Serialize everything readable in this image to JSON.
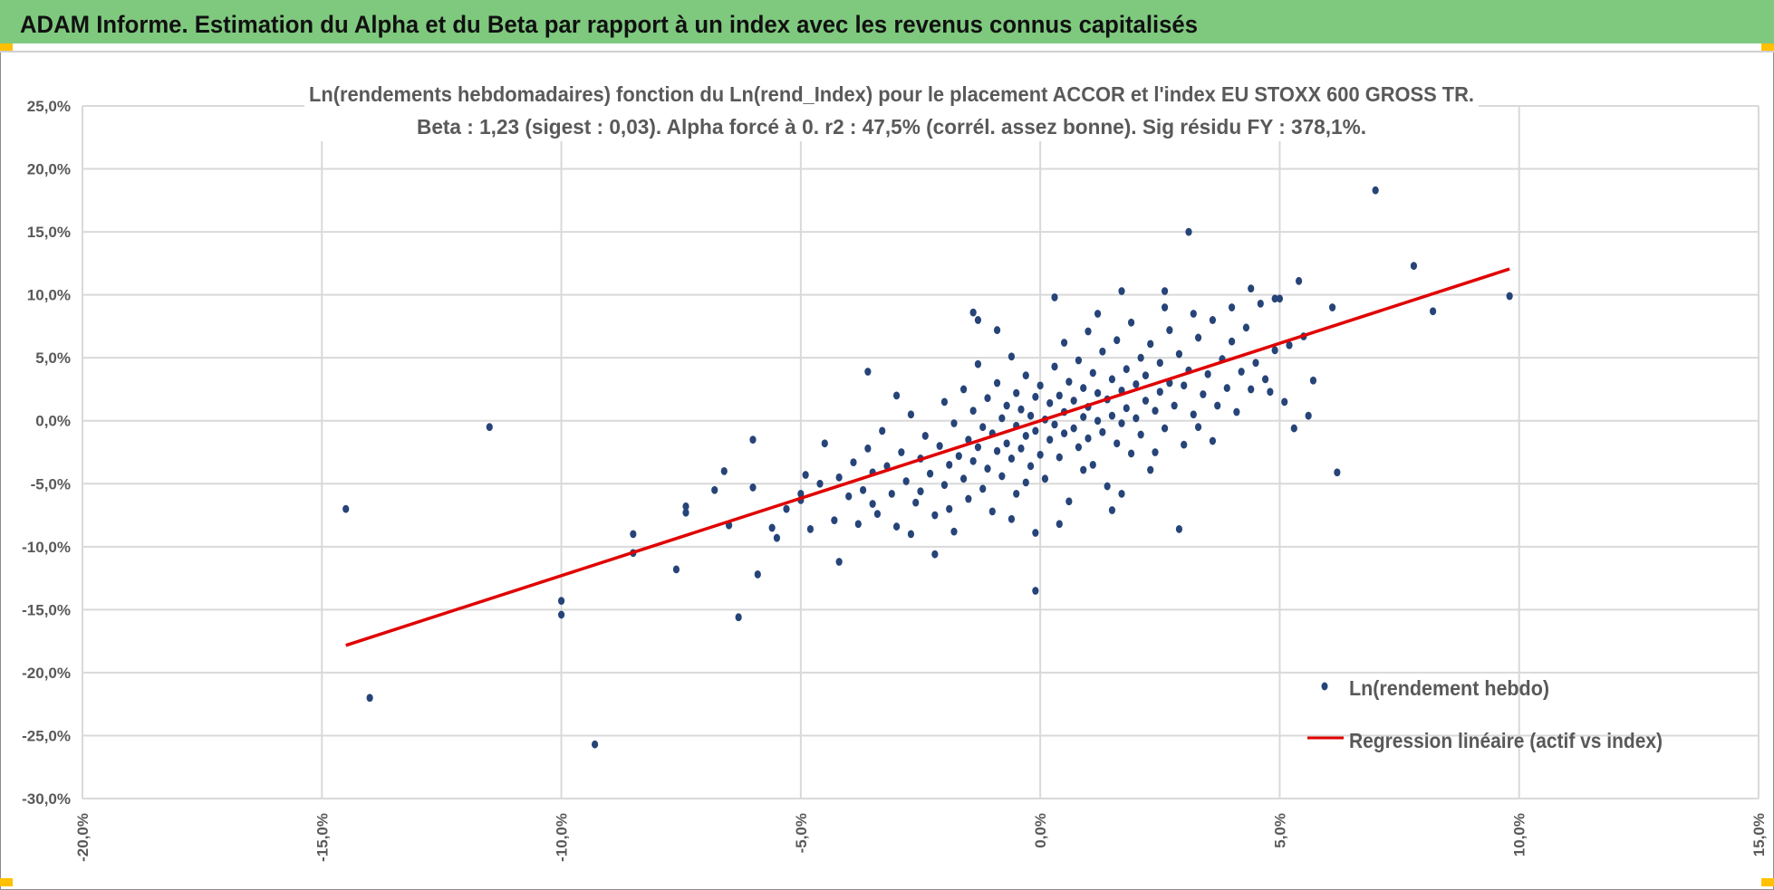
{
  "header": {
    "title": "ADAM Informe. Estimation du Alpha et du Beta par rapport à un index avec les revenus connus capitalisés"
  },
  "colors": {
    "header_bg": "#7fc97f",
    "accent": "#ffc000",
    "points": "#264478",
    "regression": "#e00000",
    "grid": "#d9d9d9",
    "text": "#595959"
  },
  "chart_data": {
    "type": "scatter",
    "title": "Ln(rendements hebdomadaires) fonction du Ln(rend_Index) pour le placement ACCOR et l'index EU STOXX 600 GROSS TR.",
    "subtitle": "Beta : 1,23 (sigest : 0,03). Alpha forcé à 0. r2 : 47,5% (corrél. assez bonne). Sig résidu FY : 378,1%.",
    "xlabel": "",
    "ylabel": "",
    "xlim": [
      -20,
      15
    ],
    "ylim": [
      -30,
      25
    ],
    "grid": true,
    "legend_position": "bottom-right",
    "x_ticks": [
      "-20,0%",
      "-15,0%",
      "-10,0%",
      "-5,0%",
      "0,0%",
      "5,0%",
      "10,0%",
      "15,0%"
    ],
    "y_ticks": [
      "25,0%",
      "20,0%",
      "15,0%",
      "10,0%",
      "5,0%",
      "0,0%",
      "-5,0%",
      "-10,0%",
      "-15,0%",
      "-20,0%",
      "-25,0%",
      "-30,0%"
    ],
    "series": [
      {
        "name": "Ln(rendement hebdo)",
        "type": "scatter",
        "points": [
          [
            -14.5,
            -7.0
          ],
          [
            -14.0,
            -22.0
          ],
          [
            -11.5,
            -0.5
          ],
          [
            -10.0,
            -14.3
          ],
          [
            -10.0,
            -15.4
          ],
          [
            -9.3,
            -25.7
          ],
          [
            -8.5,
            -9.0
          ],
          [
            -8.5,
            -10.5
          ],
          [
            -7.6,
            -11.8
          ],
          [
            -7.4,
            -6.8
          ],
          [
            -7.4,
            -7.3
          ],
          [
            -6.8,
            -5.5
          ],
          [
            -6.6,
            -4.0
          ],
          [
            -6.5,
            -8.3
          ],
          [
            -6.3,
            -15.6
          ],
          [
            -6.0,
            -1.5
          ],
          [
            -5.9,
            -12.2
          ],
          [
            -6.0,
            -5.3
          ],
          [
            -5.5,
            -9.3
          ],
          [
            -5.0,
            -5.8
          ],
          [
            -4.2,
            -11.2
          ],
          [
            -3.6,
            3.9
          ],
          [
            -3.0,
            2.0
          ],
          [
            -2.2,
            -10.6
          ],
          [
            -1.4,
            8.6
          ],
          [
            -1.3,
            8.0
          ],
          [
            -0.9,
            7.2
          ],
          [
            -0.1,
            -13.5
          ],
          [
            -0.1,
            -8.9
          ],
          [
            0.3,
            9.8
          ],
          [
            1.2,
            8.5
          ],
          [
            1.7,
            10.3
          ],
          [
            2.6,
            10.3
          ],
          [
            2.6,
            9.0
          ],
          [
            2.9,
            -8.6
          ],
          [
            3.1,
            15.0
          ],
          [
            3.2,
            8.5
          ],
          [
            4.0,
            9.0
          ],
          [
            4.4,
            10.5
          ],
          [
            4.6,
            9.3
          ],
          [
            4.9,
            9.7
          ],
          [
            5.0,
            9.7
          ],
          [
            5.4,
            11.1
          ],
          [
            5.3,
            -0.6
          ],
          [
            5.6,
            0.4
          ],
          [
            5.7,
            3.2
          ],
          [
            6.1,
            9.0
          ],
          [
            6.2,
            -4.1
          ],
          [
            7.0,
            18.3
          ],
          [
            7.8,
            12.3
          ],
          [
            8.2,
            8.7
          ],
          [
            9.8,
            9.9
          ],
          [
            4.8,
            2.3
          ],
          [
            4.4,
            2.5
          ],
          [
            3.6,
            -1.6
          ],
          [
            5.2,
            6.0
          ],
          [
            5.5,
            6.7
          ],
          [
            -5.6,
            -8.5
          ],
          [
            -5.3,
            -7.0
          ],
          [
            -5.0,
            -6.3
          ],
          [
            -4.8,
            -8.6
          ],
          [
            -4.6,
            -5.0
          ],
          [
            -4.5,
            -1.8
          ],
          [
            -4.3,
            -7.9
          ],
          [
            -4.2,
            -4.5
          ],
          [
            -4.0,
            -6.0
          ],
          [
            -3.9,
            -3.3
          ],
          [
            -3.8,
            -8.2
          ],
          [
            -3.7,
            -5.5
          ],
          [
            -3.6,
            -2.2
          ],
          [
            -3.5,
            -4.1
          ],
          [
            -3.4,
            -7.4
          ],
          [
            -3.3,
            -0.8
          ],
          [
            -3.2,
            -3.6
          ],
          [
            -3.1,
            -5.8
          ],
          [
            -3.0,
            -8.4
          ],
          [
            -2.9,
            -2.5
          ],
          [
            -2.8,
            -4.8
          ],
          [
            -2.7,
            0.5
          ],
          [
            -2.6,
            -6.5
          ],
          [
            -2.5,
            -3.0
          ],
          [
            -2.4,
            -1.2
          ],
          [
            -2.3,
            -4.2
          ],
          [
            -2.2,
            -7.5
          ],
          [
            -2.1,
            -2.0
          ],
          [
            -2.0,
            1.5
          ],
          [
            -2.0,
            -5.1
          ],
          [
            -1.9,
            -3.5
          ],
          [
            -1.8,
            -0.2
          ],
          [
            -1.8,
            -8.8
          ],
          [
            -1.7,
            -2.8
          ],
          [
            -1.6,
            2.5
          ],
          [
            -1.6,
            -4.6
          ],
          [
            -1.5,
            -1.5
          ],
          [
            -1.5,
            -6.2
          ],
          [
            -1.4,
            0.8
          ],
          [
            -1.4,
            -3.2
          ],
          [
            -1.3,
            4.5
          ],
          [
            -1.3,
            -2.1
          ],
          [
            -1.2,
            -5.4
          ],
          [
            -1.2,
            -0.5
          ],
          [
            -1.1,
            1.8
          ],
          [
            -1.1,
            -3.8
          ],
          [
            -1.0,
            -1.0
          ],
          [
            -1.0,
            -7.2
          ],
          [
            -0.9,
            3.0
          ],
          [
            -0.9,
            -2.4
          ],
          [
            -0.8,
            0.2
          ],
          [
            -0.8,
            -4.4
          ],
          [
            -0.7,
            1.2
          ],
          [
            -0.7,
            -1.8
          ],
          [
            -0.6,
            5.1
          ],
          [
            -0.6,
            -3.0
          ],
          [
            -0.5,
            -0.4
          ],
          [
            -0.5,
            2.2
          ],
          [
            -0.5,
            -5.8
          ],
          [
            -0.4,
            0.9
          ],
          [
            -0.4,
            -2.2
          ],
          [
            -0.3,
            3.6
          ],
          [
            -0.3,
            -1.2
          ],
          [
            -0.2,
            -3.6
          ],
          [
            -0.2,
            0.4
          ],
          [
            -0.1,
            1.9
          ],
          [
            -0.1,
            -0.8
          ],
          [
            0.0,
            -2.7
          ],
          [
            0.0,
            2.8
          ],
          [
            0.1,
            0.1
          ],
          [
            0.1,
            -4.6
          ],
          [
            0.2,
            1.4
          ],
          [
            0.2,
            -1.5
          ],
          [
            0.3,
            4.3
          ],
          [
            0.3,
            -0.3
          ],
          [
            0.4,
            2.0
          ],
          [
            0.4,
            -2.9
          ],
          [
            0.5,
            0.7
          ],
          [
            0.5,
            6.2
          ],
          [
            0.5,
            -1.0
          ],
          [
            0.6,
            3.1
          ],
          [
            0.6,
            -6.4
          ],
          [
            0.7,
            1.6
          ],
          [
            0.7,
            -0.6
          ],
          [
            0.8,
            4.8
          ],
          [
            0.8,
            -2.1
          ],
          [
            0.9,
            0.3
          ],
          [
            0.9,
            2.6
          ],
          [
            1.0,
            -1.4
          ],
          [
            1.0,
            7.1
          ],
          [
            1.0,
            1.1
          ],
          [
            1.1,
            3.8
          ],
          [
            1.1,
            -3.5
          ],
          [
            1.2,
            0.0
          ],
          [
            1.2,
            2.2
          ],
          [
            1.3,
            5.5
          ],
          [
            1.3,
            -0.9
          ],
          [
            1.4,
            1.7
          ],
          [
            1.4,
            -5.2
          ],
          [
            1.5,
            3.3
          ],
          [
            1.5,
            0.4
          ],
          [
            1.6,
            6.4
          ],
          [
            1.6,
            -1.8
          ],
          [
            1.7,
            2.4
          ],
          [
            1.7,
            -0.2
          ],
          [
            1.8,
            4.1
          ],
          [
            1.8,
            1.0
          ],
          [
            1.9,
            -2.6
          ],
          [
            1.9,
            7.8
          ],
          [
            2.0,
            2.9
          ],
          [
            2.0,
            0.2
          ],
          [
            2.1,
            5.0
          ],
          [
            2.1,
            -1.1
          ],
          [
            2.2,
            1.6
          ],
          [
            2.2,
            3.6
          ],
          [
            2.3,
            -3.9
          ],
          [
            2.3,
            6.1
          ],
          [
            2.4,
            0.8
          ],
          [
            2.5,
            2.3
          ],
          [
            2.5,
            4.6
          ],
          [
            2.6,
            -0.6
          ],
          [
            2.7,
            3.0
          ],
          [
            2.7,
            7.2
          ],
          [
            2.8,
            1.2
          ],
          [
            2.9,
            5.3
          ],
          [
            3.0,
            -1.9
          ],
          [
            3.0,
            2.8
          ],
          [
            3.1,
            4.0
          ],
          [
            3.2,
            0.5
          ],
          [
            3.3,
            6.6
          ],
          [
            3.4,
            2.1
          ],
          [
            3.5,
            3.7
          ],
          [
            3.6,
            8.0
          ],
          [
            3.7,
            1.2
          ],
          [
            3.8,
            4.9
          ],
          [
            3.9,
            2.6
          ],
          [
            4.0,
            6.3
          ],
          [
            4.1,
            0.7
          ],
          [
            4.2,
            3.9
          ],
          [
            4.3,
            7.4
          ],
          [
            4.5,
            4.6
          ],
          [
            4.7,
            3.3
          ],
          [
            4.9,
            5.6
          ],
          [
            5.1,
            1.5
          ],
          [
            -2.7,
            -9.0
          ],
          [
            -3.5,
            -6.6
          ],
          [
            -4.9,
            -4.3
          ],
          [
            -0.6,
            -7.8
          ],
          [
            0.4,
            -8.2
          ],
          [
            1.7,
            -5.8
          ],
          [
            1.5,
            -7.1
          ],
          [
            -1.9,
            -7.0
          ],
          [
            -2.5,
            -5.6
          ],
          [
            -0.3,
            -4.9
          ],
          [
            0.9,
            -3.9
          ],
          [
            2.4,
            -2.5
          ],
          [
            3.3,
            -0.5
          ]
        ]
      },
      {
        "name": "Regression linéaire (actif vs index)",
        "type": "line",
        "points": [
          [
            -14.5,
            -17.835
          ],
          [
            9.8,
            12.054
          ]
        ]
      }
    ]
  }
}
